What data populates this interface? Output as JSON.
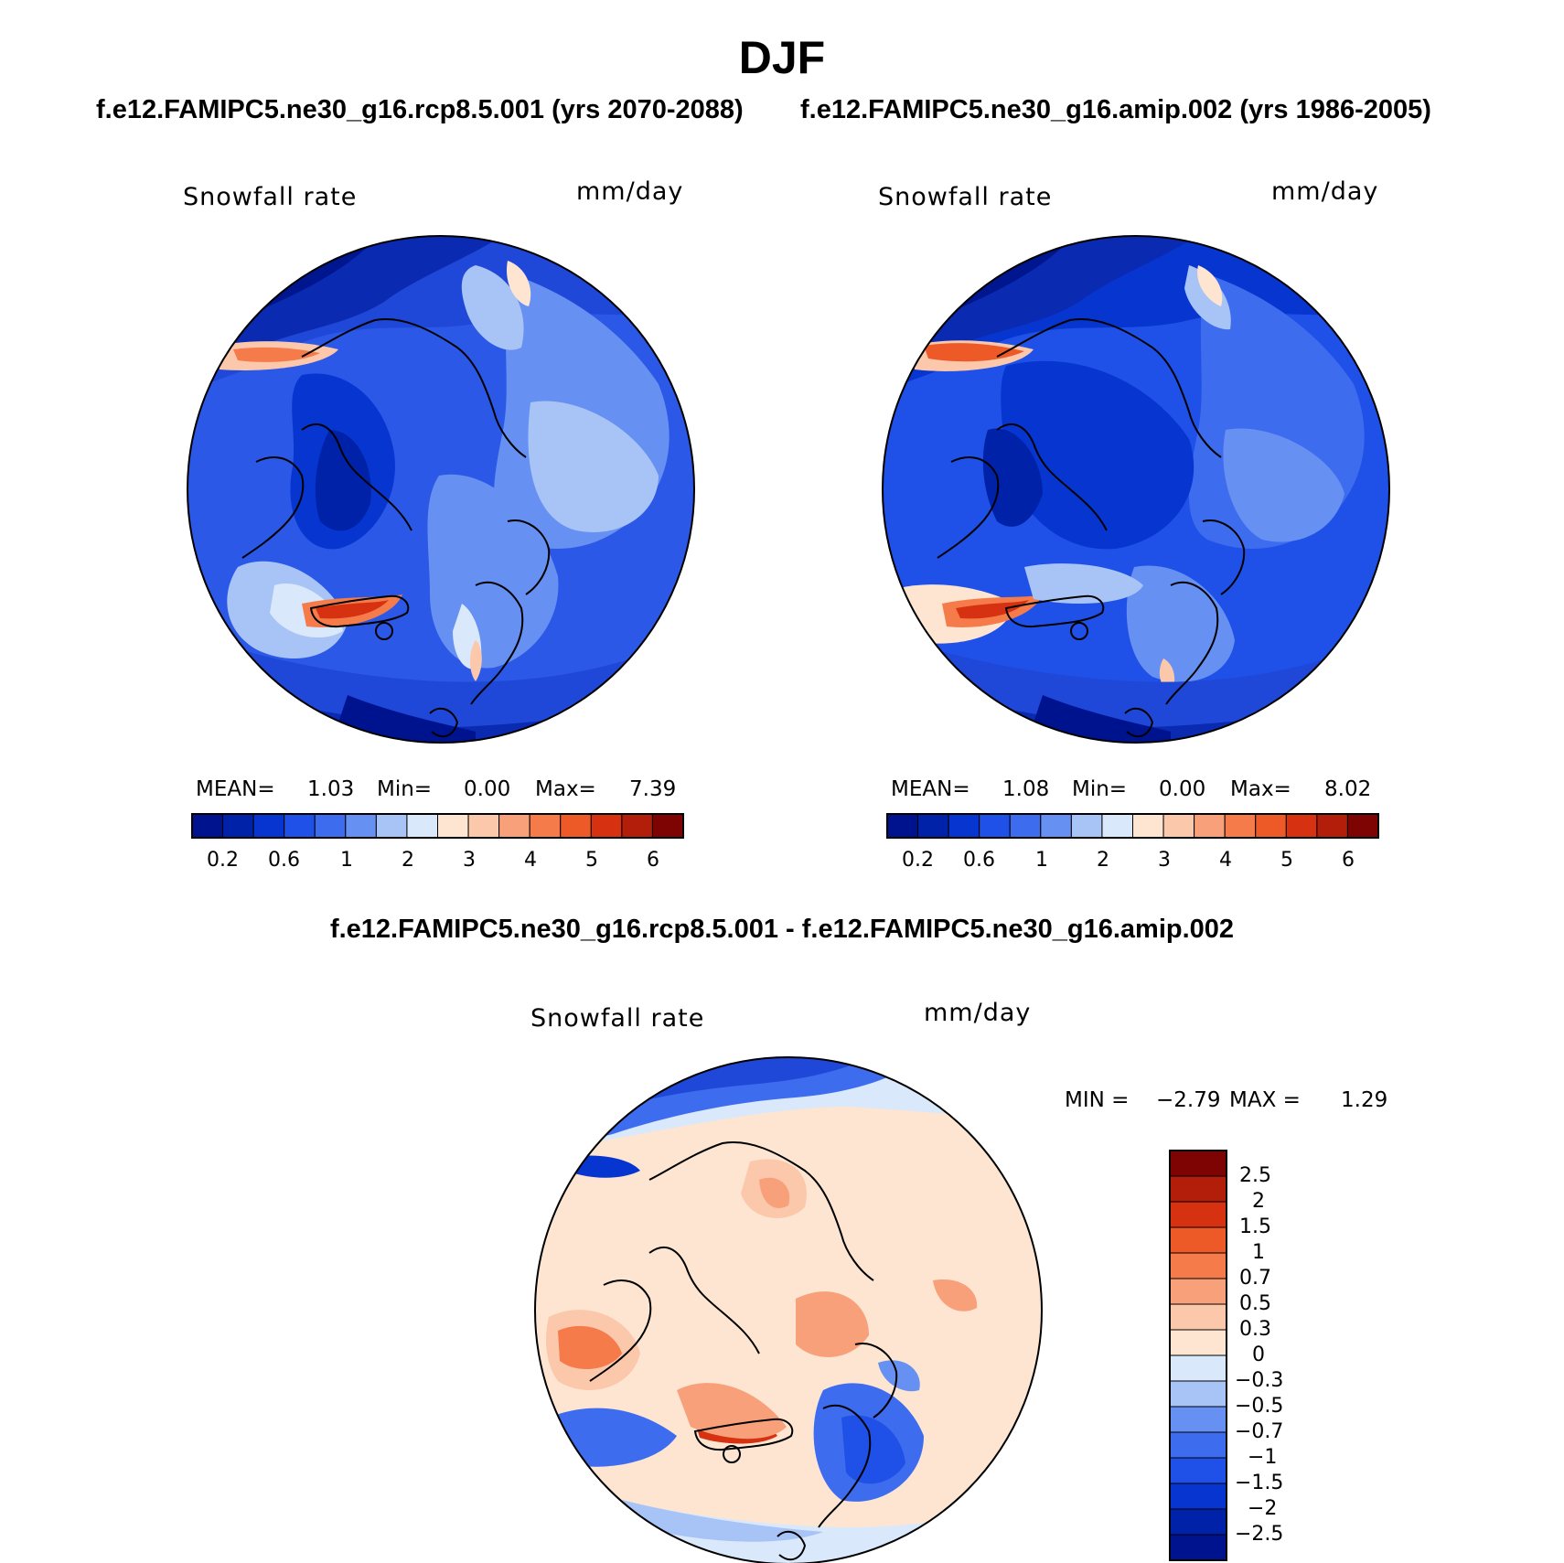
{
  "figure": {
    "season": "DJF",
    "diff_title": "f.e12.FAMIPC5.ne30_g16.rcp8.5.001 - f.e12.FAMIPC5.ne30_g16.amip.002"
  },
  "panels": [
    {
      "title": "f.e12.FAMIPC5.ne30_g16.rcp8.5.001 (yrs 2070-2088)",
      "variable": "Snowfall rate",
      "units": "mm/day",
      "stats": {
        "mean_label": "MEAN=",
        "mean": "1.03",
        "min_label": "Min=",
        "min": "0.00",
        "max_label": "Max=",
        "max": "7.39"
      }
    },
    {
      "title": "f.e12.FAMIPC5.ne30_g16.amip.002 (yrs 1986-2005)",
      "variable": "Snowfall rate",
      "units": "mm/day",
      "stats": {
        "mean_label": "MEAN=",
        "mean": "1.08",
        "min_label": "Min=",
        "min": "0.00",
        "max_label": "Max=",
        "max": "8.02"
      }
    },
    {
      "variable": "Snowfall rate",
      "units": "mm/day",
      "stats": {
        "min_label": "MIN =",
        "min": "−2.79",
        "max_label": "MAX =",
        "max": "1.29"
      }
    }
  ],
  "colorbars": {
    "abs": {
      "colors": [
        "#00138f",
        "#0022a8",
        "#0735d0",
        "#1f51e8",
        "#3e6cef",
        "#6690f1",
        "#a8c4f6",
        "#d9e8fa",
        "#fde5d2",
        "#fcc8ac",
        "#f8a07a",
        "#f57b4b",
        "#ed5a28",
        "#d63212",
        "#b21e0a",
        "#7e0303"
      ],
      "tick_labels": [
        "0.2",
        "0.6",
        "1",
        "2",
        "3",
        "4",
        "5",
        "6"
      ]
    },
    "diff": {
      "colors": [
        "#00138f",
        "#0022a8",
        "#0735d0",
        "#1f51e8",
        "#3e6cef",
        "#6690f1",
        "#a8c4f6",
        "#d9e8fa",
        "#fde5d2",
        "#fcc8ac",
        "#f8a07a",
        "#f57b4b",
        "#ed5a28",
        "#d63212",
        "#b21e0a",
        "#7e0303"
      ],
      "tick_labels": [
        "2.5",
        "2",
        "1.5",
        "1",
        "0.7",
        "0.5",
        "0.3",
        "0",
        "−0.3",
        "−0.5",
        "−0.7",
        "−1",
        "−1.5",
        "−2",
        "−2.5"
      ]
    }
  }
}
